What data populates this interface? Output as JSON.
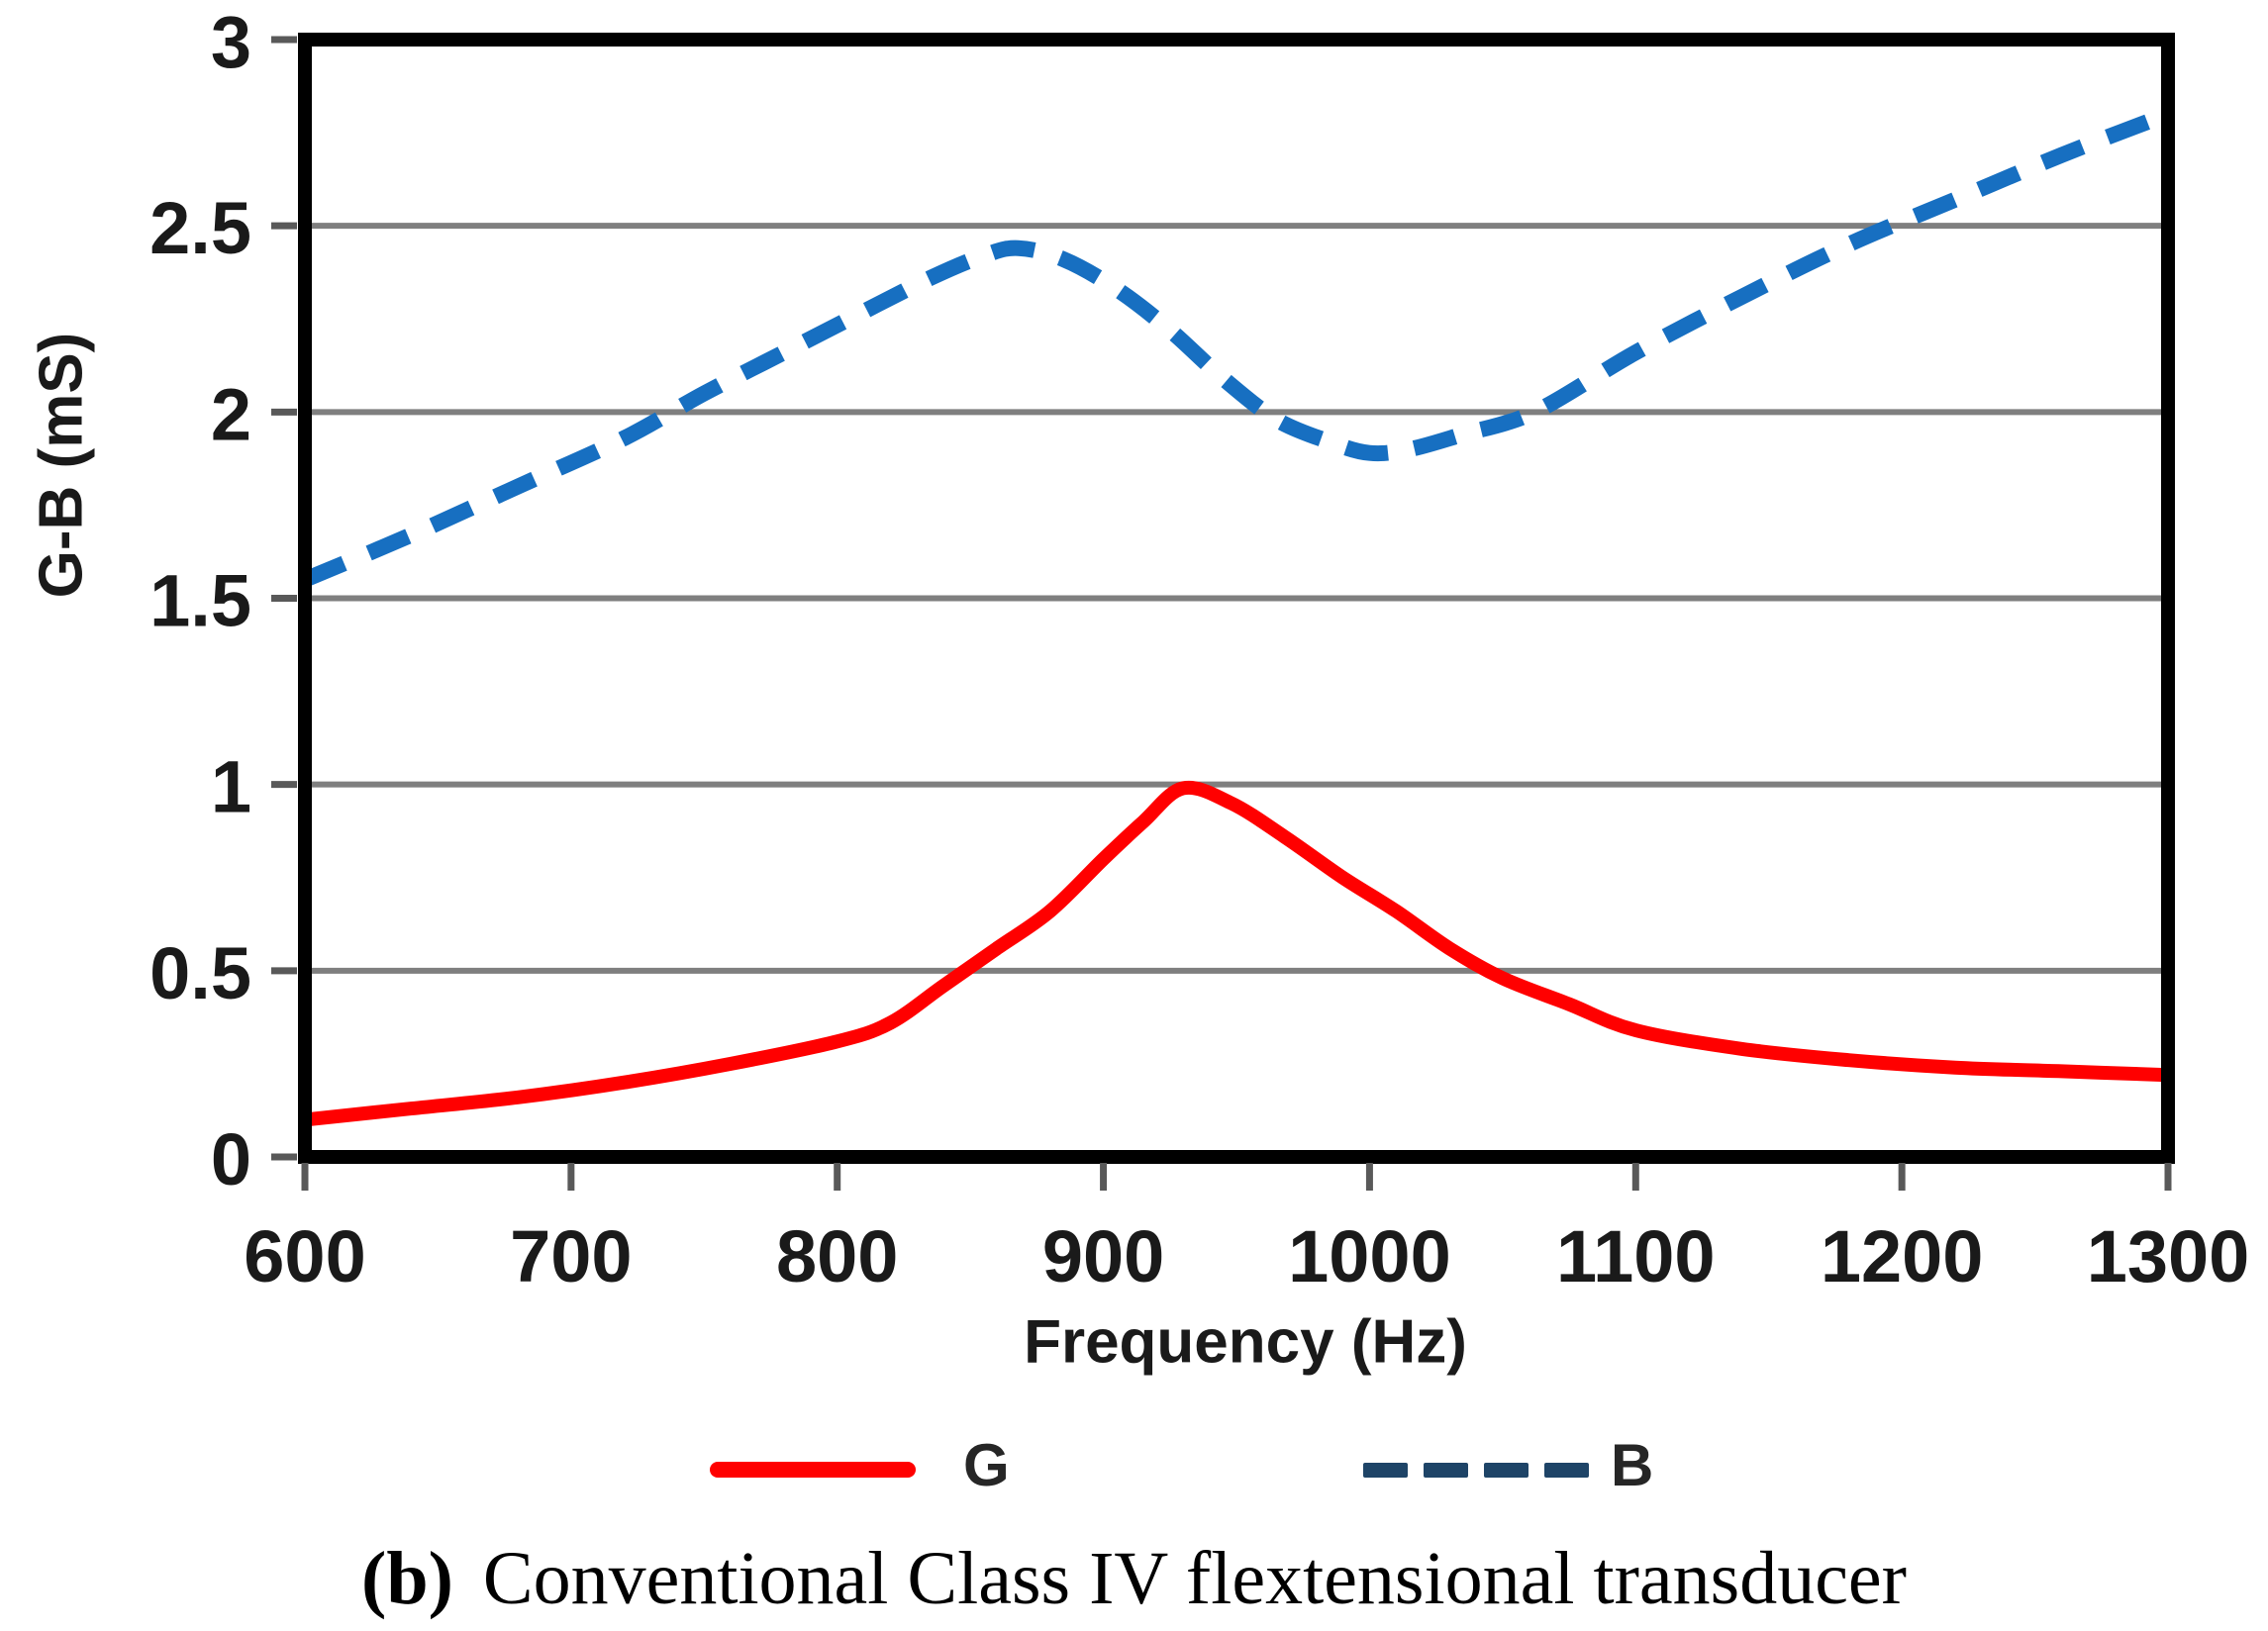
{
  "figure": {
    "caption_prefix": "(b)",
    "caption_text": "Conventional Class IV flextensional transducer"
  },
  "colors": {
    "grid": "#7f7f7f",
    "tick": "#595959",
    "frame": "#000000",
    "text": "#1a1a1a",
    "background": "#ffffff",
    "series_g": "#ff0000",
    "series_b": "#176fc1",
    "legend_b_key": "#1e4467"
  },
  "chart_data": {
    "type": "line",
    "title": "",
    "xlabel": "Frequency (Hz)",
    "ylabel": "G-B (mS)",
    "xlim": [
      600,
      1300
    ],
    "ylim": [
      0,
      3
    ],
    "x_ticks": [
      600,
      700,
      800,
      900,
      1000,
      1100,
      1200,
      1300
    ],
    "y_ticks": [
      0,
      0.5,
      1,
      1.5,
      2,
      2.5,
      3
    ],
    "grid": "horizontal",
    "legend_position": "bottom",
    "series": [
      {
        "name": "G",
        "style": "solid",
        "color": "#ff0000",
        "points": [
          [
            600,
            0.1
          ],
          [
            640,
            0.13
          ],
          [
            680,
            0.16
          ],
          [
            720,
            0.2
          ],
          [
            760,
            0.25
          ],
          [
            800,
            0.31
          ],
          [
            820,
            0.36
          ],
          [
            840,
            0.46
          ],
          [
            860,
            0.56
          ],
          [
            880,
            0.66
          ],
          [
            900,
            0.8
          ],
          [
            915,
            0.9
          ],
          [
            930,
            0.99
          ],
          [
            948,
            0.95
          ],
          [
            968,
            0.86
          ],
          [
            990,
            0.75
          ],
          [
            1010,
            0.66
          ],
          [
            1030,
            0.56
          ],
          [
            1050,
            0.48
          ],
          [
            1075,
            0.41
          ],
          [
            1100,
            0.34
          ],
          [
            1140,
            0.29
          ],
          [
            1180,
            0.26
          ],
          [
            1220,
            0.24
          ],
          [
            1260,
            0.23
          ],
          [
            1300,
            0.22
          ]
        ]
      },
      {
        "name": "B",
        "style": "dashed",
        "color": "#176fc1",
        "points": [
          [
            600,
            1.55
          ],
          [
            640,
            1.67
          ],
          [
            680,
            1.8
          ],
          [
            720,
            1.93
          ],
          [
            750,
            2.05
          ],
          [
            780,
            2.16
          ],
          [
            810,
            2.27
          ],
          [
            835,
            2.36
          ],
          [
            855,
            2.42
          ],
          [
            868,
            2.44
          ],
          [
            885,
            2.41
          ],
          [
            905,
            2.33
          ],
          [
            925,
            2.22
          ],
          [
            945,
            2.09
          ],
          [
            965,
            1.98
          ],
          [
            985,
            1.92
          ],
          [
            1000,
            1.89
          ],
          [
            1015,
            1.9
          ],
          [
            1035,
            1.94
          ],
          [
            1062,
            2.0
          ],
          [
            1100,
            2.16
          ],
          [
            1140,
            2.31
          ],
          [
            1180,
            2.45
          ],
          [
            1220,
            2.57
          ],
          [
            1260,
            2.69
          ],
          [
            1300,
            2.8
          ]
        ]
      }
    ]
  }
}
